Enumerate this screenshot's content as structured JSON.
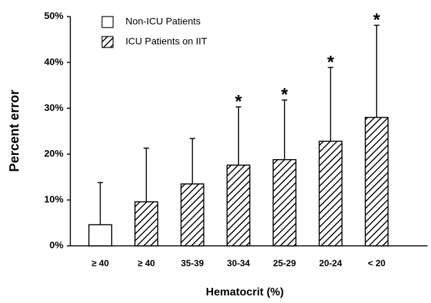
{
  "chart_data": {
    "type": "bar",
    "xlabel": "Hematocrit (%)",
    "ylabel": "Percent error",
    "categories": [
      "≥ 40",
      "≥ 40",
      "35-39",
      "30-34",
      "25-29",
      "20-24",
      "< 20"
    ],
    "series": [
      {
        "name": "Non-ICU Patients",
        "color": "#ffffff",
        "pattern": "solid",
        "values": [
          4.6,
          null,
          null,
          null,
          null,
          null,
          null
        ],
        "errors": [
          9.2,
          null,
          null,
          null,
          null,
          null,
          null
        ]
      },
      {
        "name": "ICU Patients on IIT",
        "color": "#000000",
        "pattern": "hatch",
        "values": [
          null,
          9.6,
          13.5,
          17.6,
          18.8,
          22.8,
          28.0
        ],
        "errors": [
          null,
          11.7,
          9.9,
          12.7,
          13.0,
          16.1,
          20.1
        ],
        "markers": [
          null,
          null,
          null,
          "*",
          "*",
          "*",
          "*"
        ]
      }
    ],
    "ylim": [
      0,
      50
    ],
    "yticks": [
      {
        "value": 0,
        "label": "0%"
      },
      {
        "value": 10,
        "label": "10%"
      },
      {
        "value": 20,
        "label": "20%"
      },
      {
        "value": 30,
        "label": "30%"
      },
      {
        "value": 40,
        "label": "40%"
      },
      {
        "value": 50,
        "label": "50%"
      }
    ],
    "legend": "upper-left"
  }
}
